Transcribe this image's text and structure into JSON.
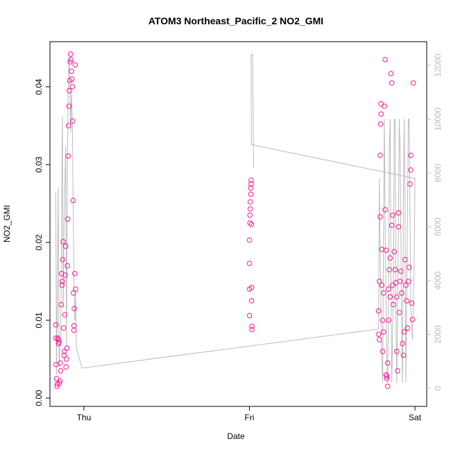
{
  "chart_data": {
    "type": "scatter",
    "title": "ATOM3 Northeast_Pacific_2 NO2_GMI",
    "xlabel": "Date",
    "ylabel": "NO2_GMI",
    "xlim": [
      -0.205,
      2.071
    ],
    "xticks": [
      {
        "value": 0,
        "label": "Thu"
      },
      {
        "value": 1,
        "label": "Fri"
      },
      {
        "value": 2,
        "label": "Sat"
      }
    ],
    "ylim": [
      -0.00107,
      0.0458
    ],
    "yticks": [
      {
        "value": 0,
        "label": "0.00"
      },
      0.01,
      0.02,
      0.03,
      0.04
    ],
    "y2lim": [
      -671,
      12877
    ],
    "y2ticks": [
      0,
      2000,
      4000,
      6000,
      8000,
      10000,
      12000
    ],
    "series": [
      {
        "name": "NO2_GMI",
        "color": "#ff1493",
        "x": [
          -0.17,
          -0.17,
          -0.168,
          -0.165,
          -0.163,
          -0.16,
          -0.158,
          -0.155,
          -0.153,
          -0.15,
          -0.148,
          -0.145,
          -0.142,
          -0.14,
          -0.137,
          -0.135,
          -0.132,
          -0.13,
          -0.128,
          -0.125,
          -0.123,
          -0.12,
          -0.118,
          -0.115,
          -0.113,
          -0.11,
          -0.108,
          -0.105,
          -0.103,
          -0.1,
          -0.098,
          -0.095,
          -0.093,
          -0.09,
          -0.088,
          -0.085,
          -0.083,
          -0.08,
          -0.078,
          -0.075,
          -0.073,
          -0.07,
          -0.068,
          -0.065,
          -0.063,
          -0.06,
          -0.058,
          -0.055,
          -0.053,
          -0.05,
          -0.06,
          1.0,
          1.0,
          1.0,
          1.0,
          1.003,
          1.003,
          1.005,
          1.005,
          1.008,
          1.008,
          1.01,
          1.01,
          1.012,
          1.013,
          1.013,
          1.015,
          1.015,
          1.78,
          1.78,
          1.785,
          1.785,
          1.79,
          1.79,
          1.792,
          1.795,
          1.795,
          1.8,
          1.8,
          1.805,
          1.805,
          1.81,
          1.81,
          1.815,
          1.82,
          1.82,
          1.825,
          1.825,
          1.83,
          1.83,
          1.835,
          1.835,
          1.84,
          1.84,
          1.845,
          1.85,
          1.85,
          1.855,
          1.86,
          1.86,
          1.865,
          1.865,
          1.87,
          1.875,
          1.88,
          1.885,
          1.89,
          1.89,
          1.895,
          1.9,
          1.9,
          1.905,
          1.91,
          1.915,
          1.92,
          1.925,
          1.93,
          1.935,
          1.94,
          1.945,
          1.95,
          1.955,
          1.96,
          1.965,
          1.97,
          1.975,
          1.975,
          1.98,
          1.985,
          1.99
        ],
        "values": [
          0.0094,
          0.0077,
          0.0043,
          0.0025,
          0.0015,
          0.0018,
          0.0077,
          0.0075,
          0.007,
          0.0072,
          0.0019,
          0.0022,
          0.0045,
          0.0035,
          0.012,
          0.016,
          0.0145,
          0.015,
          0.0178,
          0.0201,
          0.009,
          0.0055,
          0.006,
          0.0107,
          0.0158,
          0.0195,
          0.004,
          0.005,
          0.0064,
          0.017,
          0.023,
          0.0311,
          0.035,
          0.0375,
          0.0395,
          0.0408,
          0.0432,
          0.0442,
          0.0435,
          0.042,
          0.041,
          0.04,
          0.0356,
          0.0254,
          0.0135,
          0.0093,
          0.0115,
          0.016,
          0.0428,
          0.014,
          0.0087,
          0.0106,
          0.014,
          0.0173,
          0.0203,
          0.0225,
          0.0235,
          0.0243,
          0.0252,
          0.0262,
          0.027,
          0.028,
          0.0275,
          0.0223,
          0.0142,
          0.0125,
          0.0092,
          0.0088,
          0.0112,
          0.0082,
          0.0075,
          0.015,
          0.0233,
          0.0312,
          0.0352,
          0.0378,
          0.0365,
          0.0191,
          0.0145,
          0.01,
          0.006,
          0.0085,
          0.0135,
          0.0375,
          0.0435,
          0.0242,
          0.019,
          0.003,
          0.0028,
          0.0025,
          0.0045,
          0.0015,
          0.01,
          0.014,
          0.0165,
          0.018,
          0.013,
          0.0417,
          0.0405,
          0.0222,
          0.0235,
          0.0145,
          0.012,
          0.0188,
          0.0165,
          0.0148,
          0.013,
          0.006,
          0.0035,
          0.022,
          0.0238,
          0.011,
          0.015,
          0.0163,
          0.0135,
          0.007,
          0.0055,
          0.0085,
          0.0178,
          0.0145,
          0.0125,
          0.009,
          0.015,
          0.0168,
          0.0275,
          0.0312,
          0.0293,
          0.0122,
          0.0101,
          0.0405
        ]
      },
      {
        "type": "line",
        "axis": "y2",
        "color": "#bbbbbb",
        "x": [
          -0.17,
          -0.165,
          -0.155,
          -0.15,
          -0.14,
          -0.13,
          -0.125,
          -0.12,
          -0.11,
          -0.105,
          -0.1,
          -0.095,
          -0.09,
          -0.085,
          -0.08,
          -0.075,
          -0.07,
          -0.065,
          -0.06,
          -0.055,
          -0.05,
          -0.045,
          -0.012,
          1.78,
          1.785,
          1.79,
          1.8,
          1.805,
          1.81,
          1.815,
          1.82,
          1.83,
          1.835,
          1.84,
          1.845,
          1.85,
          1.855,
          1.86,
          1.87,
          1.875,
          1.88,
          1.885,
          1.89,
          1.9,
          1.905,
          1.91,
          1.92,
          1.925,
          1.93,
          1.935,
          1.94,
          1.945,
          1.95,
          1.96,
          1.965,
          1.975,
          1.985,
          1.995,
          2.0,
          1.012,
          1.01,
          1.02,
          1.025
        ],
        "values": [
          7300,
          500,
          7450,
          800,
          2000,
          10100,
          3000,
          6000,
          9000,
          1500,
          8000,
          11000,
          12300,
          11500,
          9500,
          11000,
          10000,
          7000,
          4000,
          2500,
          3500,
          1500,
          750,
          2200,
          7800,
          5000,
          1000,
          200,
          5500,
          10000,
          6000,
          1000,
          200,
          3000,
          9000,
          10000,
          4000,
          200,
          4000,
          10000,
          10000,
          3000,
          200,
          6000,
          10000,
          9000,
          2000,
          200,
          7000,
          10000,
          7000,
          200,
          3000,
          10000,
          10000,
          3000,
          1800,
          4500,
          7800,
          9050,
          12400,
          12400,
          8200
        ]
      }
    ]
  }
}
